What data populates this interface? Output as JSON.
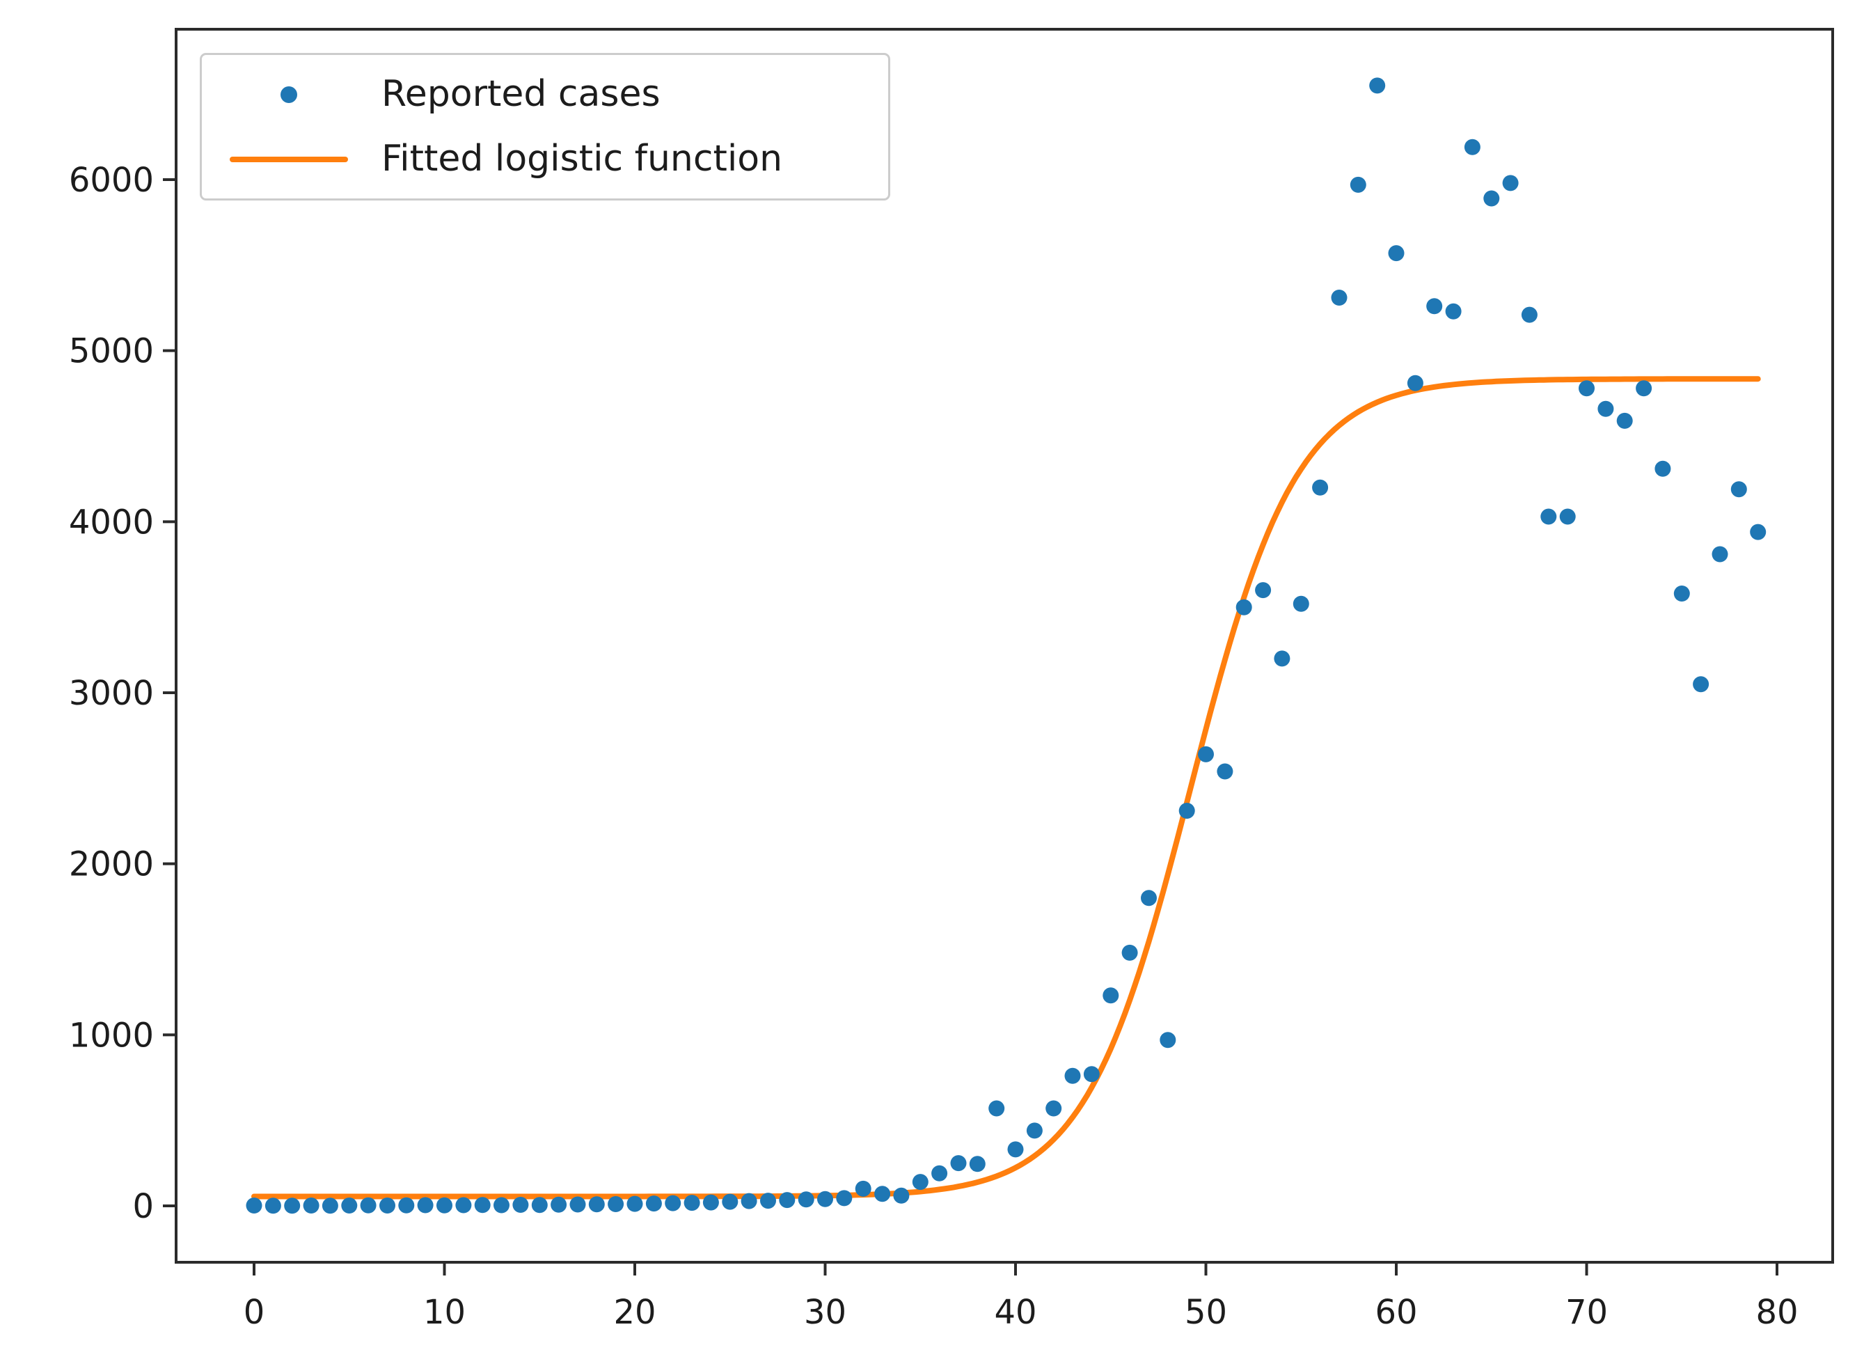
{
  "figure": {
    "background": "#ffffff",
    "plot_border_color": "#2b2b2b"
  },
  "legend": {
    "position": "upper left",
    "items": [
      {
        "label": "Reported cases",
        "marker": "dot",
        "color": "#1f77b4"
      },
      {
        "label": "Fitted logistic function",
        "marker": "line",
        "color": "#ff7f0e"
      }
    ]
  },
  "chart_data": {
    "type": "scatter",
    "title": "",
    "xlabel": "",
    "ylabel": "",
    "xlim": [
      -4.1,
      82.9
    ],
    "ylim": [
      -330,
      6880
    ],
    "x_ticks": [
      0,
      10,
      20,
      30,
      40,
      50,
      60,
      70,
      80
    ],
    "y_ticks": [
      0,
      1000,
      2000,
      3000,
      4000,
      5000,
      6000
    ],
    "grid": false,
    "legend_position": "upper left",
    "series": [
      {
        "name": "Reported cases",
        "type": "scatter",
        "color": "#1f77b4",
        "x": [
          0,
          1,
          2,
          3,
          4,
          5,
          6,
          7,
          8,
          9,
          10,
          11,
          12,
          13,
          14,
          15,
          16,
          17,
          18,
          19,
          20,
          21,
          22,
          23,
          24,
          25,
          26,
          27,
          28,
          29,
          30,
          31,
          32,
          33,
          34,
          35,
          36,
          37,
          38,
          39,
          40,
          41,
          42,
          43,
          44,
          45,
          46,
          47,
          48,
          49,
          50,
          51,
          52,
          53,
          54,
          55,
          56,
          57,
          58,
          59,
          60,
          61,
          62,
          63,
          64,
          65,
          66,
          67,
          68,
          69,
          70,
          71,
          72,
          73,
          74,
          75,
          76,
          77,
          78,
          79
        ],
        "y": [
          2,
          1,
          1,
          2,
          1,
          2,
          3,
          2,
          3,
          4,
          3,
          4,
          5,
          4,
          6,
          5,
          7,
          8,
          9,
          10,
          12,
          14,
          16,
          18,
          20,
          24,
          28,
          30,
          34,
          38,
          40,
          45,
          100,
          70,
          60,
          140,
          190,
          250,
          245,
          570,
          330,
          440,
          570,
          760,
          770,
          1230,
          1480,
          1800,
          970,
          2310,
          2640,
          2540,
          3500,
          3600,
          3200,
          3520,
          4200,
          5310,
          5970,
          6550,
          5570,
          4810,
          5260,
          5230,
          6190,
          5890,
          5980,
          5210,
          4030,
          4030,
          4780,
          4660,
          4590,
          4780,
          4310,
          3580,
          3050,
          3810,
          4190,
          3940
        ]
      },
      {
        "name": "Fitted logistic function",
        "type": "line",
        "color": "#ff7f0e",
        "model": "y = offset + L / (1 + exp(-k * (x - x0)))",
        "params": {
          "L": 4780,
          "k": 0.36,
          "x0": 49.2,
          "offset": 55
        },
        "x_range": [
          0,
          79
        ],
        "plateau": 4835
      }
    ]
  }
}
